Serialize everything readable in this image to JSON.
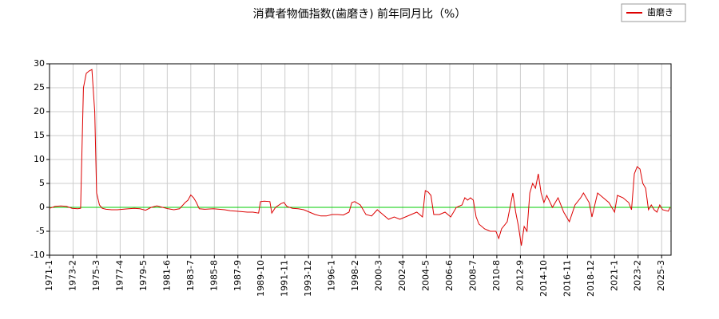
{
  "chart_data": {
    "type": "line",
    "title": "消費者物価指数(歯磨き) 前年同月比（%）",
    "x": [
      "1971-1",
      "1971-7",
      "1972-1",
      "1972-7",
      "1973-1",
      "1973-7",
      "1973-10",
      "1974-1",
      "1974-4",
      "1974-7",
      "1974-10",
      "1975-1",
      "1975-3",
      "1975-6",
      "1975-9",
      "1976-1",
      "1976-7",
      "1977-1",
      "1977-7",
      "1978-1",
      "1978-7",
      "1979-1",
      "1979-7",
      "1980-1",
      "1980-7",
      "1981-1",
      "1981-7",
      "1982-1",
      "1982-7",
      "1983-1",
      "1983-4",
      "1983-7",
      "1983-10",
      "1984-1",
      "1984-4",
      "1984-10",
      "1985-7",
      "1986-1",
      "1986-7",
      "1987-1",
      "1987-7",
      "1988-1",
      "1988-7",
      "1989-1",
      "1989-7",
      "1989-9",
      "1990-1",
      "1990-7",
      "1990-9",
      "1991-1",
      "1991-7",
      "1991-10",
      "1992-1",
      "1992-7",
      "1993-1",
      "1993-7",
      "1994-1",
      "1994-7",
      "1995-1",
      "1995-7",
      "1996-1",
      "1996-7",
      "1997-1",
      "1997-7",
      "1997-10",
      "1998-1",
      "1998-7",
      "1999-1",
      "1999-7",
      "2000-1",
      "2000-7",
      "2001-1",
      "2001-7",
      "2002-1",
      "2002-7",
      "2003-1",
      "2003-7",
      "2004-1",
      "2004-4",
      "2004-7",
      "2004-10",
      "2005-1",
      "2005-7",
      "2006-1",
      "2006-7",
      "2007-1",
      "2007-7",
      "2007-10",
      "2008-1",
      "2008-4",
      "2008-7",
      "2008-10",
      "2009-1",
      "2009-7",
      "2010-1",
      "2010-7",
      "2010-10",
      "2011-1",
      "2011-7",
      "2011-10",
      "2012-1",
      "2012-4",
      "2012-7",
      "2012-10",
      "2013-1",
      "2013-4",
      "2013-7",
      "2013-10",
      "2014-1",
      "2014-4",
      "2014-7",
      "2014-10",
      "2015-1",
      "2015-7",
      "2016-1",
      "2016-7",
      "2017-1",
      "2017-7",
      "2018-1",
      "2018-4",
      "2018-10",
      "2019-1",
      "2019-7",
      "2020-1",
      "2020-7",
      "2021-1",
      "2021-4",
      "2021-10",
      "2022-4",
      "2022-7",
      "2022-10",
      "2023-1",
      "2023-4",
      "2023-7",
      "2023-10",
      "2024-1",
      "2024-4",
      "2024-7",
      "2024-10",
      "2025-1",
      "2025-4",
      "2025-10",
      "2025-12"
    ],
    "series": [
      {
        "name": "歯磨き",
        "color": "#dd0000",
        "values": [
          -0.2,
          0.2,
          0.3,
          0.2,
          -0.2,
          -0.3,
          -0.2,
          25,
          28,
          28.5,
          28.8,
          20,
          3,
          0.5,
          -0.2,
          -0.4,
          -0.5,
          -0.5,
          -0.4,
          -0.3,
          -0.2,
          -0.3,
          -0.6,
          0,
          0.3,
          0,
          -0.3,
          -0.5,
          -0.3,
          1,
          1.5,
          2.6,
          2,
          1,
          -0.3,
          -0.4,
          -0.3,
          -0.4,
          -0.5,
          -0.7,
          -0.8,
          -0.9,
          -1,
          -1,
          -1.2,
          1.2,
          1.3,
          1.2,
          -1.2,
          0,
          0.8,
          1,
          0.2,
          -0.2,
          -0.3,
          -0.5,
          -1,
          -1.5,
          -1.8,
          -1.8,
          -1.5,
          -1.5,
          -1.6,
          -1,
          1,
          1.2,
          0.5,
          -1.5,
          -1.8,
          -0.5,
          -1.5,
          -2.5,
          -2,
          -2.5,
          -2,
          -1.5,
          -1,
          -2,
          3.5,
          3.2,
          2.5,
          -1.5,
          -1.5,
          -1,
          -2,
          0,
          0.5,
          2,
          1.5,
          2,
          1.5,
          -2,
          -3.5,
          -4.5,
          -5,
          -5,
          -6.5,
          -4.5,
          -3,
          0,
          3,
          -1,
          -4,
          -8,
          -4,
          -5,
          3,
          5,
          4,
          7,
          3,
          1,
          2.5,
          0,
          2,
          -1,
          -3,
          0.5,
          2,
          3,
          1,
          -2,
          3,
          2,
          1,
          -1,
          2.5,
          2,
          1,
          -0.5,
          7,
          8.5,
          8,
          5,
          4,
          -0.5,
          0.5,
          -0.5,
          -1,
          0.5,
          -0.5,
          -0.8,
          0
        ]
      }
    ],
    "xlim": [
      "1971-1",
      "2026-1"
    ],
    "xticks": [
      "1971-1",
      "1973-2",
      "1975-3",
      "1977-4",
      "1979-5",
      "1981-6",
      "1983-7",
      "1985-8",
      "1987-9",
      "1989-10",
      "1991-11",
      "1993-12",
      "1996-1",
      "1998-2",
      "2000-3",
      "2002-4",
      "2004-5",
      "2006-6",
      "2008-7",
      "2010-8",
      "2012-9",
      "2014-10",
      "2016-11",
      "2018-12",
      "2021-1",
      "2023-2",
      "2025-3"
    ],
    "ylim": [
      -10,
      30
    ],
    "yticks": [
      -10,
      -5,
      0,
      5,
      10,
      15,
      20,
      25,
      30
    ],
    "reference_line": {
      "value": 0,
      "color": "#00cc00"
    },
    "grid": true,
    "legend": "top-right"
  }
}
